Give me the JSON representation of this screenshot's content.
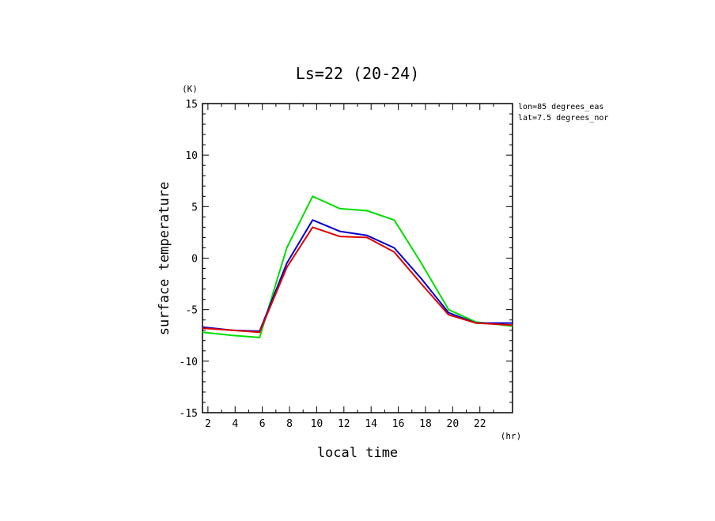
{
  "chart_data": {
    "type": "line",
    "title": "Ls=22 (20-24)",
    "xlabel": "local time",
    "ylabel": "surface temperature",
    "x_unit": "(hr)",
    "y_unit": "(K)",
    "xlim": [
      1.6,
      24.4
    ],
    "ylim": [
      -15,
      15
    ],
    "x_ticks": [
      2,
      4,
      6,
      8,
      10,
      12,
      14,
      16,
      18,
      20,
      22
    ],
    "y_ticks": [
      -15,
      -10,
      -5,
      0,
      5,
      10,
      15
    ],
    "annotations": [
      "lon=85 degrees_eas",
      "lat=7.5 degrees_nor"
    ],
    "grid": false,
    "x": [
      1.6,
      3.8,
      5.8,
      7.8,
      9.7,
      11.7,
      13.7,
      15.7,
      17.7,
      19.7,
      21.7,
      24.4
    ],
    "series": [
      {
        "color": "#00dd00",
        "values": [
          -7.2,
          -7.5,
          -7.7,
          1.0,
          6.0,
          4.8,
          4.6,
          3.7,
          -0.5,
          -5.0,
          -6.2,
          -6.6
        ]
      },
      {
        "color": "#0000cc",
        "values": [
          -6.7,
          -7.0,
          -7.1,
          -0.5,
          3.7,
          2.6,
          2.2,
          1.0,
          -2.0,
          -5.3,
          -6.3,
          -6.3
        ]
      },
      {
        "color": "#dd0000",
        "values": [
          -6.8,
          -7.0,
          -7.2,
          -0.9,
          3.0,
          2.1,
          2.0,
          0.6,
          -2.5,
          -5.5,
          -6.3,
          -6.5
        ]
      }
    ]
  }
}
